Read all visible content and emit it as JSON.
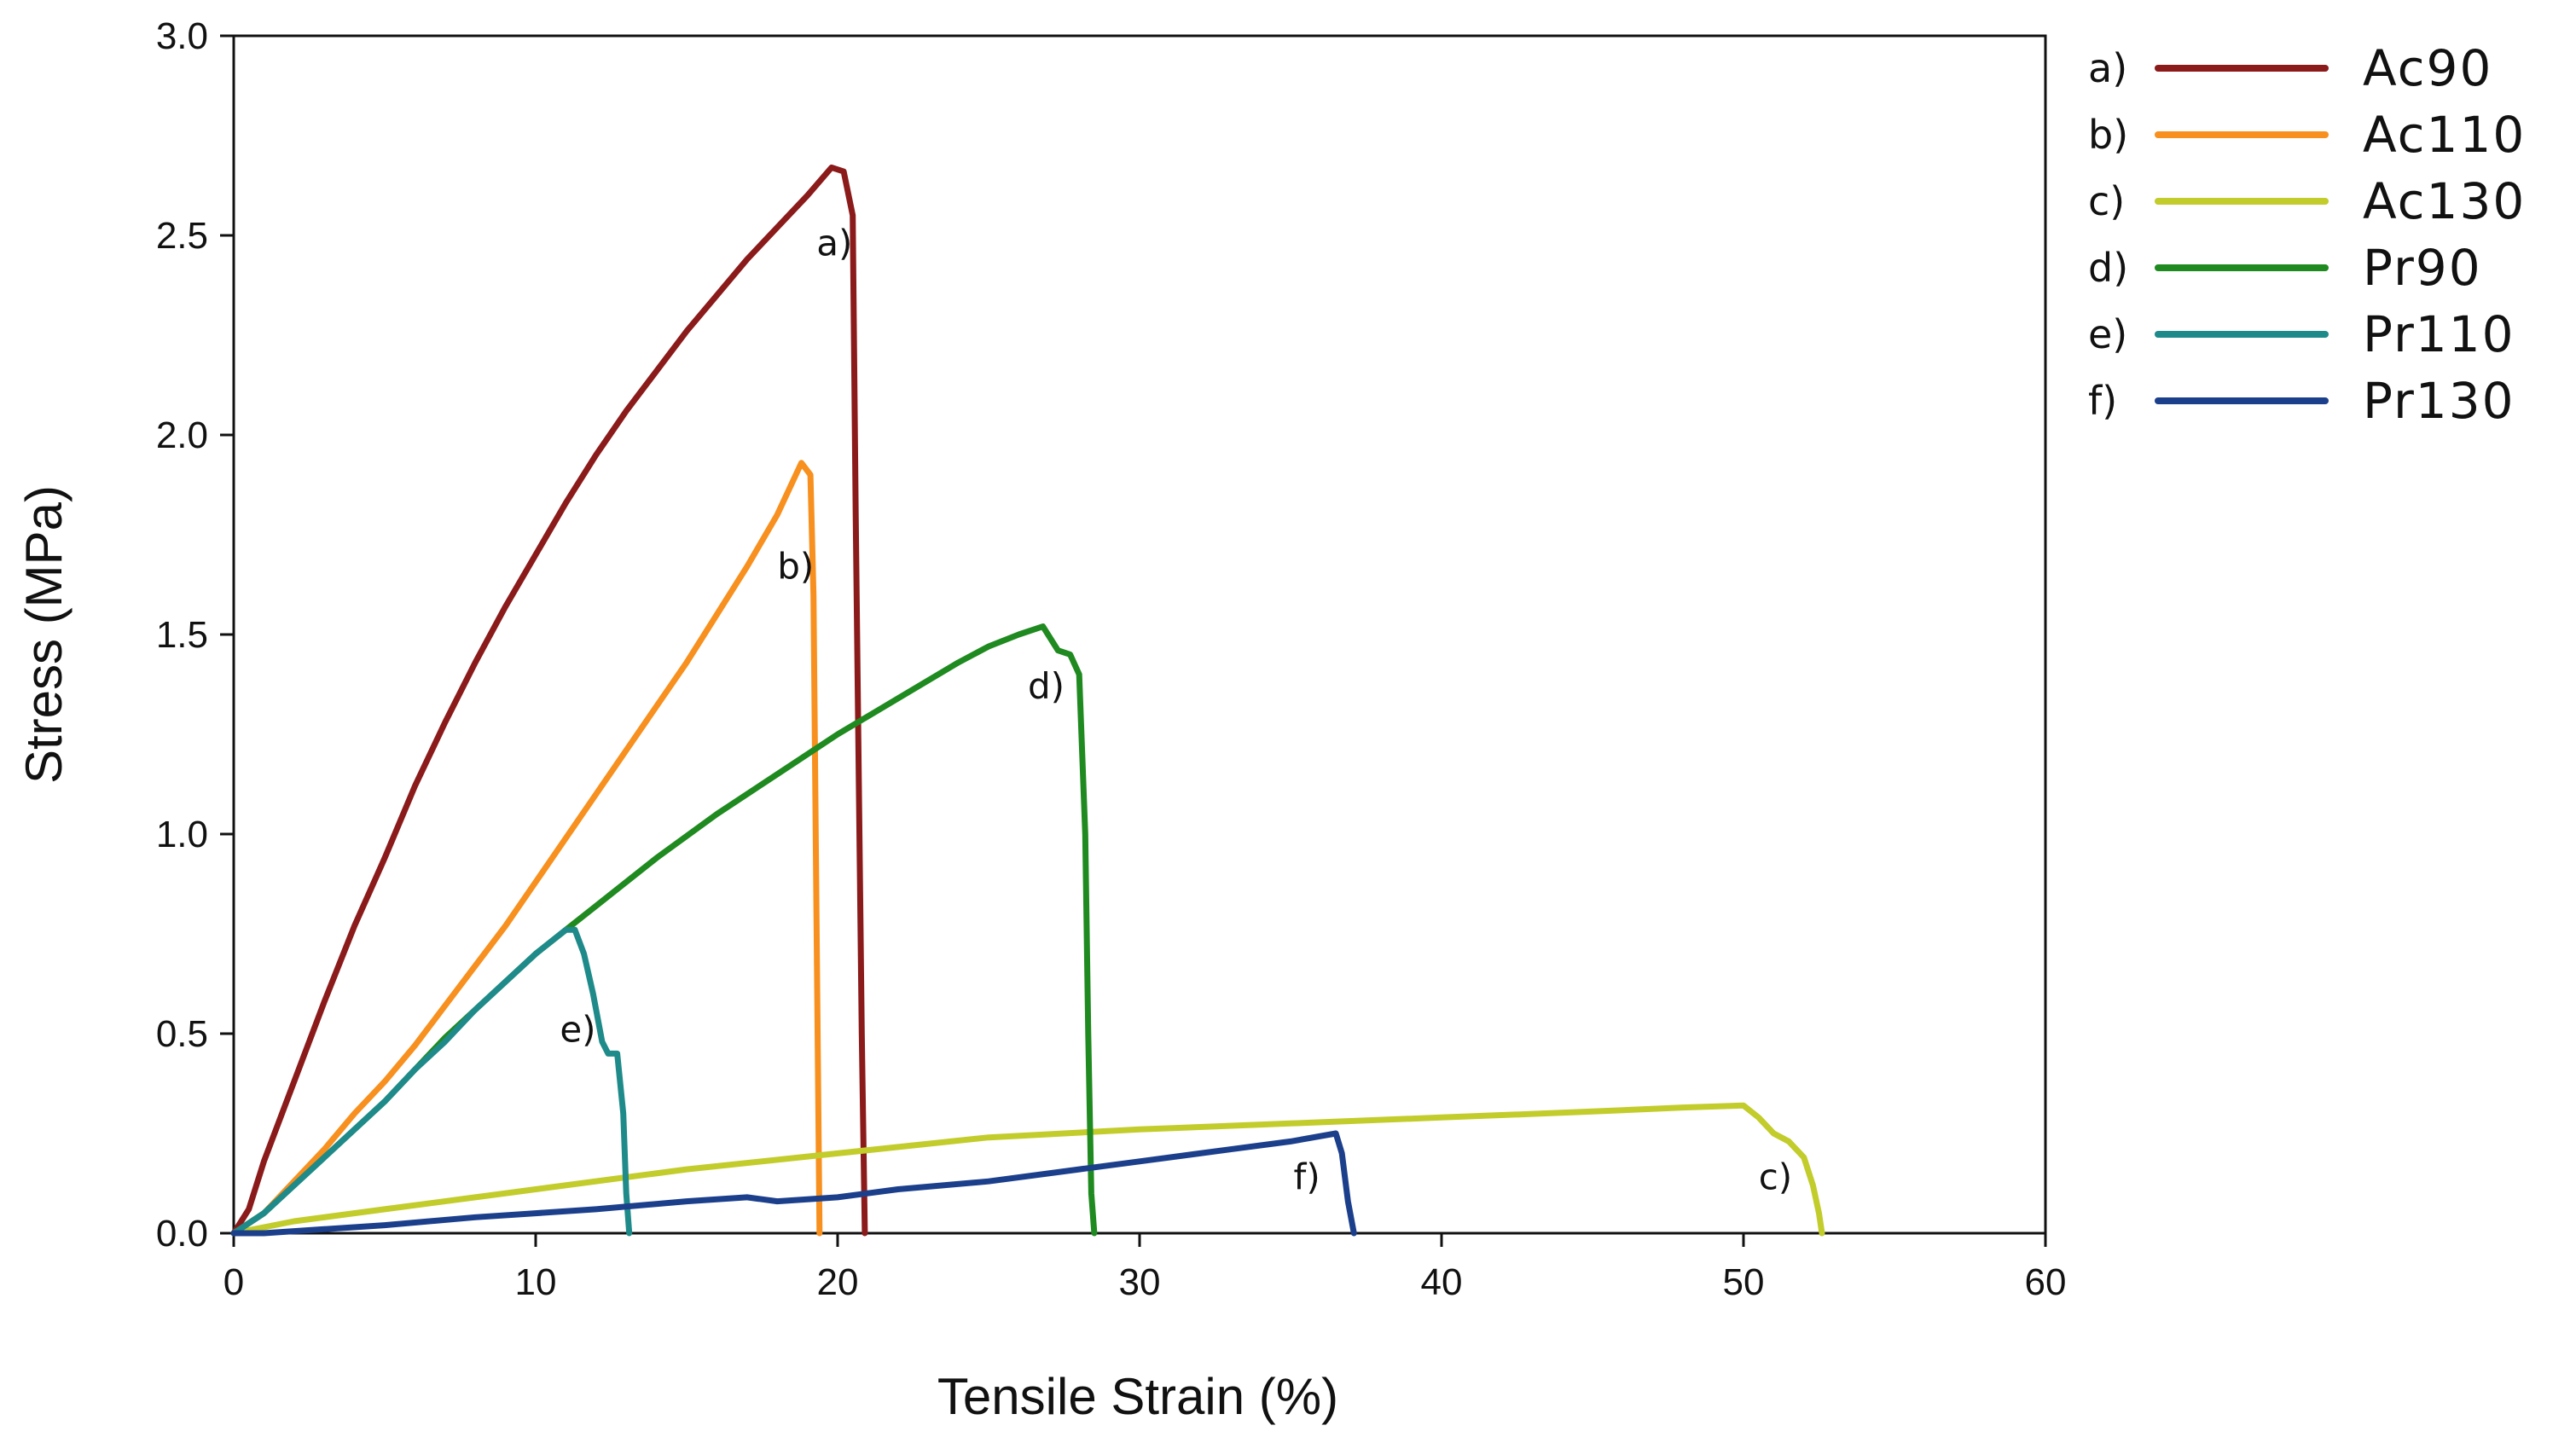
{
  "chart_data": {
    "type": "line",
    "title": "",
    "xlabel": "Tensile Strain (%)",
    "ylabel": "Stress (MPa)",
    "xlim": [
      0,
      60
    ],
    "ylim": [
      0,
      3.0
    ],
    "xticks": [
      0,
      10,
      20,
      30,
      40,
      50,
      60
    ],
    "xtick_labels": [
      "0",
      "10",
      "20",
      "30",
      "40",
      "50",
      "60"
    ],
    "yticks": [
      0,
      0.5,
      1.0,
      1.5,
      2.0,
      2.5,
      3.0
    ],
    "ytick_labels": [
      "0.0",
      "0.5",
      "1.0",
      "1.5",
      "2.0",
      "2.5",
      "3.0"
    ],
    "grid": false,
    "legend_position": "outside-right-top",
    "series": [
      {
        "key": "a)",
        "name": "Ac90",
        "color": "#8b1a1a",
        "x": [
          0,
          0.5,
          1,
          2,
          3,
          4,
          5,
          6,
          7,
          8,
          9,
          10,
          11,
          12,
          13,
          14,
          15,
          16,
          17,
          18,
          19,
          19.8,
          20.2,
          20.5,
          20.6,
          20.8,
          20.9
        ],
        "y": [
          0,
          0.06,
          0.18,
          0.38,
          0.58,
          0.77,
          0.94,
          1.12,
          1.28,
          1.43,
          1.57,
          1.7,
          1.83,
          1.95,
          2.06,
          2.16,
          2.26,
          2.35,
          2.44,
          2.52,
          2.6,
          2.67,
          2.66,
          2.55,
          1.8,
          0.5,
          0.0
        ]
      },
      {
        "key": "b)",
        "name": "Ac110",
        "color": "#f7901e",
        "x": [
          0,
          1,
          2,
          3,
          4,
          5,
          6,
          7,
          8,
          9,
          10,
          11,
          12,
          13,
          14,
          15,
          16,
          17,
          18,
          18.8,
          19.1,
          19.2,
          19.3,
          19.4
        ],
        "y": [
          0,
          0.05,
          0.13,
          0.21,
          0.3,
          0.38,
          0.47,
          0.57,
          0.67,
          0.77,
          0.88,
          0.99,
          1.1,
          1.21,
          1.32,
          1.43,
          1.55,
          1.67,
          1.8,
          1.93,
          1.9,
          1.6,
          0.8,
          0.0
        ]
      },
      {
        "key": "c)",
        "name": "Ac130",
        "color": "#c2cc2b",
        "x": [
          0,
          2,
          5,
          8,
          10,
          15,
          20,
          25,
          30,
          35,
          40,
          45,
          48,
          50,
          50.5,
          51,
          51.5,
          52,
          52.3,
          52.5,
          52.6
        ],
        "y": [
          0,
          0.03,
          0.06,
          0.09,
          0.11,
          0.16,
          0.2,
          0.24,
          0.26,
          0.275,
          0.29,
          0.305,
          0.315,
          0.32,
          0.29,
          0.25,
          0.23,
          0.19,
          0.12,
          0.05,
          0.0
        ]
      },
      {
        "key": "d)",
        "name": "Pr90",
        "color": "#1f8a1f",
        "x": [
          0,
          1,
          2,
          3,
          4,
          5,
          6,
          7,
          8,
          9,
          10,
          11,
          12,
          14,
          16,
          18,
          20,
          22,
          24,
          25,
          26,
          26.8,
          27.3,
          27.7,
          28.0,
          28.2,
          28.3,
          28.4,
          28.5
        ],
        "y": [
          0,
          0.05,
          0.12,
          0.19,
          0.26,
          0.33,
          0.41,
          0.49,
          0.56,
          0.63,
          0.7,
          0.76,
          0.82,
          0.94,
          1.05,
          1.15,
          1.25,
          1.34,
          1.43,
          1.47,
          1.5,
          1.52,
          1.46,
          1.45,
          1.4,
          1.0,
          0.5,
          0.1,
          0.0
        ]
      },
      {
        "key": "e)",
        "name": "Pr110",
        "color": "#1f8a8a",
        "x": [
          0,
          1,
          2,
          3,
          4,
          5,
          6,
          7,
          8,
          9,
          10,
          11,
          11.3,
          11.6,
          11.9,
          12.2,
          12.4,
          12.7,
          12.9,
          13.0,
          13.1
        ],
        "y": [
          0,
          0.05,
          0.12,
          0.19,
          0.26,
          0.33,
          0.41,
          0.48,
          0.56,
          0.63,
          0.7,
          0.76,
          0.76,
          0.7,
          0.6,
          0.48,
          0.45,
          0.45,
          0.3,
          0.1,
          0.0
        ]
      },
      {
        "key": "f)",
        "name": "Pr130",
        "color": "#1c3f8c",
        "x": [
          0,
          1,
          3,
          5,
          8,
          10,
          12,
          15,
          17,
          18,
          20,
          22,
          25,
          28,
          30,
          33,
          35,
          36.5,
          36.7,
          36.9,
          37.1
        ],
        "y": [
          0,
          0.0,
          0.01,
          0.02,
          0.04,
          0.05,
          0.06,
          0.08,
          0.09,
          0.08,
          0.09,
          0.11,
          0.13,
          0.16,
          0.18,
          0.21,
          0.23,
          0.25,
          0.2,
          0.08,
          0.0
        ]
      }
    ],
    "annotations": [
      {
        "text": "a)",
        "x": 19.3,
        "y": 2.45
      },
      {
        "text": "b)",
        "x": 18.0,
        "y": 1.64
      },
      {
        "text": "c)",
        "x": 50.5,
        "y": 0.11
      },
      {
        "text": "d)",
        "x": 26.3,
        "y": 1.34
      },
      {
        "text": "e)",
        "x": 10.8,
        "y": 0.48
      },
      {
        "text": "f)",
        "x": 35.1,
        "y": 0.11
      }
    ]
  }
}
